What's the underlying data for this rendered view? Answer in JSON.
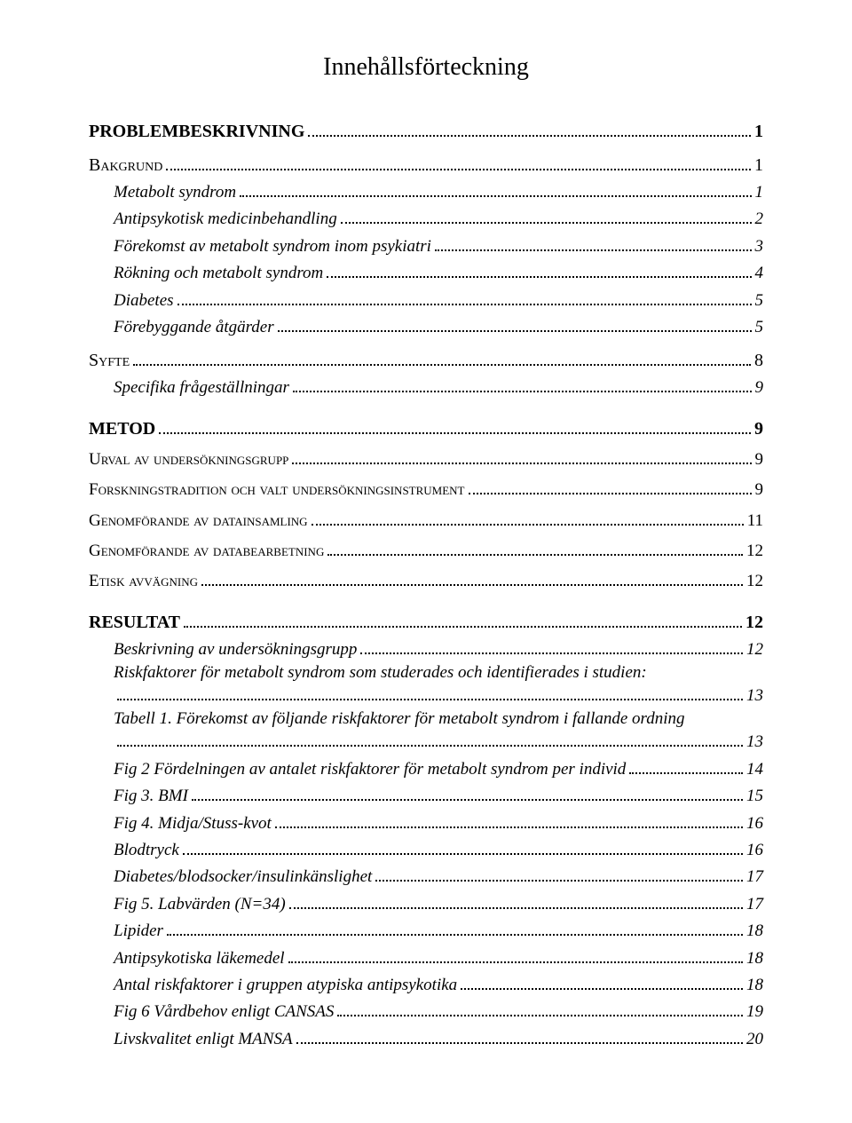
{
  "title": "Innehållsförteckning",
  "entries": [
    {
      "label": "PROBLEMBESKRIVNING",
      "page": "1",
      "cls": "lvl1"
    },
    {
      "label": "Bakgrund",
      "page": "1",
      "cls": "lvl1-sc"
    },
    {
      "label": "Metabolt syndrom",
      "page": "1",
      "cls": "lvl2"
    },
    {
      "label": "Antipsykotisk medicinbehandling",
      "page": "2",
      "cls": "lvl2"
    },
    {
      "label": "Förekomst av metabolt syndrom inom psykiatri",
      "page": "3",
      "cls": "lvl2"
    },
    {
      "label": "Rökning och metabolt syndrom",
      "page": "4",
      "cls": "lvl2"
    },
    {
      "label": "Diabetes",
      "page": "5",
      "cls": "lvl2"
    },
    {
      "label": "Förebyggande åtgärder",
      "page": "5",
      "cls": "lvl2"
    },
    {
      "label": "Syfte",
      "page": "8",
      "cls": "lvl1-sc"
    },
    {
      "label": "Specifika frågeställningar",
      "page": "9",
      "cls": "lvl2"
    },
    {
      "label": "METOD",
      "page": "9",
      "cls": "lvl1"
    },
    {
      "label": "Urval av undersökningsgrupp",
      "page": "9",
      "cls": "lvl2-sc"
    },
    {
      "label": "Forskningstradition och valt undersökningsinstrument",
      "page": "9",
      "cls": "lvl2-sc"
    },
    {
      "label": "Genomförande av datainsamling",
      "page": "11",
      "cls": "lvl2-sc"
    },
    {
      "label": "Genomförande av databearbetning",
      "page": "12",
      "cls": "lvl2-sc"
    },
    {
      "label": "Etisk avvägning",
      "page": "12",
      "cls": "lvl2-sc"
    },
    {
      "label": "RESULTAT",
      "page": "12",
      "cls": "lvl1"
    },
    {
      "label": "Beskrivning av undersökningsgrupp",
      "page": "12",
      "cls": "lvl3"
    },
    {
      "label": "Riskfaktorer för metabolt syndrom som studerades och identifierades i studien:",
      "page": "13",
      "cls": "lvl3",
      "wrap": true
    },
    {
      "label": "Tabell 1. Förekomst av följande riskfaktorer för metabolt syndrom i fallande ordning",
      "page": "13",
      "cls": "lvl3",
      "wrap": true
    },
    {
      "label": "Fig 2 Fördelningen av antalet riskfaktorer för metabolt syndrom per individ",
      "page": "14",
      "cls": "lvl3"
    },
    {
      "label": "Fig 3. BMI",
      "page": "15",
      "cls": "lvl3"
    },
    {
      "label": "Fig 4. Midja/Stuss-kvot",
      "page": "16",
      "cls": "lvl3"
    },
    {
      "label": "Blodtryck",
      "page": "16",
      "cls": "lvl3"
    },
    {
      "label": "Diabetes/blodsocker/insulinkänslighet",
      "page": "17",
      "cls": "lvl3"
    },
    {
      "label": "Fig 5. Labvärden (N=34)",
      "page": "17",
      "cls": "lvl3"
    },
    {
      "label": "Lipider",
      "page": "18",
      "cls": "lvl3"
    },
    {
      "label": "Antipsykotiska läkemedel",
      "page": "18",
      "cls": "lvl3"
    },
    {
      "label": "Antal riskfaktorer i gruppen atypiska antipsykotika",
      "page": "18",
      "cls": "lvl3"
    },
    {
      "label": "Fig 6 Vårdbehov enligt CANSAS",
      "page": "19",
      "cls": "lvl3"
    },
    {
      "label": "Livskvalitet enligt MANSA",
      "page": "20",
      "cls": "lvl3"
    }
  ]
}
